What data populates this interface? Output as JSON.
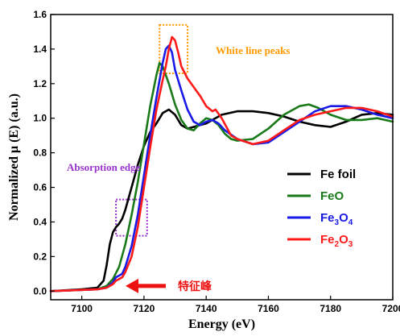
{
  "chart_data": {
    "type": "line",
    "xlabel": "Energy (eV)",
    "ylabel": "Normalized μ (E) (a.u.)",
    "xlim": [
      7090,
      7200
    ],
    "ylim": [
      -0.05,
      1.6
    ],
    "x_ticks": [
      "7100",
      "7120",
      "7140",
      "7160",
      "7180",
      "7200"
    ],
    "y_ticks": [
      "0.0",
      "0.2",
      "0.4",
      "0.6",
      "0.8",
      "1.0",
      "1.2",
      "1.4",
      "1.6"
    ],
    "grid": false,
    "legend_position": "lower-right",
    "series": [
      {
        "name": "Fe foil",
        "color": "#000000",
        "legend_parts": [
          [
            "Fe foil",
            "n"
          ]
        ],
        "points": [
          [
            7090,
            0.0
          ],
          [
            7100,
            0.01
          ],
          [
            7105,
            0.02
          ],
          [
            7107,
            0.06
          ],
          [
            7108,
            0.15
          ],
          [
            7109,
            0.27
          ],
          [
            7110,
            0.34
          ],
          [
            7111,
            0.37
          ],
          [
            7112,
            0.39
          ],
          [
            7113,
            0.42
          ],
          [
            7114,
            0.47
          ],
          [
            7116,
            0.6
          ],
          [
            7118,
            0.73
          ],
          [
            7120,
            0.84
          ],
          [
            7122,
            0.92
          ],
          [
            7124,
            0.97
          ],
          [
            7126,
            1.03
          ],
          [
            7128,
            1.05
          ],
          [
            7130,
            1.02
          ],
          [
            7132,
            0.96
          ],
          [
            7134,
            0.94
          ],
          [
            7136,
            0.95
          ],
          [
            7138,
            0.96
          ],
          [
            7140,
            0.97
          ],
          [
            7142,
            0.99
          ],
          [
            7145,
            1.02
          ],
          [
            7150,
            1.04
          ],
          [
            7155,
            1.04
          ],
          [
            7160,
            1.03
          ],
          [
            7165,
            1.01
          ],
          [
            7170,
            0.98
          ],
          [
            7175,
            0.96
          ],
          [
            7180,
            0.95
          ],
          [
            7185,
            0.98
          ],
          [
            7190,
            1.02
          ],
          [
            7195,
            1.03
          ],
          [
            7200,
            1.02
          ]
        ]
      },
      {
        "name": "FeO",
        "color": "#1a7a1a",
        "legend_parts": [
          [
            "FeO",
            "n"
          ]
        ],
        "points": [
          [
            7090,
            0.0
          ],
          [
            7105,
            0.01
          ],
          [
            7108,
            0.03
          ],
          [
            7110,
            0.07
          ],
          [
            7112,
            0.14
          ],
          [
            7114,
            0.27
          ],
          [
            7116,
            0.44
          ],
          [
            7118,
            0.63
          ],
          [
            7120,
            0.85
          ],
          [
            7122,
            1.07
          ],
          [
            7124,
            1.25
          ],
          [
            7125,
            1.32
          ],
          [
            7126,
            1.3
          ],
          [
            7128,
            1.2
          ],
          [
            7130,
            1.08
          ],
          [
            7132,
            0.99
          ],
          [
            7134,
            0.94
          ],
          [
            7136,
            0.93
          ],
          [
            7138,
            0.97
          ],
          [
            7140,
            1.0
          ],
          [
            7142,
            0.99
          ],
          [
            7144,
            0.96
          ],
          [
            7146,
            0.91
          ],
          [
            7148,
            0.88
          ],
          [
            7150,
            0.87
          ],
          [
            7155,
            0.88
          ],
          [
            7160,
            0.94
          ],
          [
            7165,
            1.02
          ],
          [
            7170,
            1.07
          ],
          [
            7173,
            1.08
          ],
          [
            7176,
            1.06
          ],
          [
            7180,
            1.02
          ],
          [
            7185,
            0.99
          ],
          [
            7190,
            0.99
          ],
          [
            7195,
            1.0
          ],
          [
            7200,
            0.98
          ]
        ]
      },
      {
        "name": "Fe3O4",
        "color": "#1a1ae6",
        "legend_parts": [
          [
            "Fe",
            "n"
          ],
          [
            "3",
            "s"
          ],
          [
            "O",
            "n"
          ],
          [
            "4",
            "s"
          ]
        ],
        "points": [
          [
            7090,
            0.0
          ],
          [
            7105,
            0.01
          ],
          [
            7108,
            0.02
          ],
          [
            7110,
            0.05
          ],
          [
            7111,
            0.08
          ],
          [
            7112,
            0.09
          ],
          [
            7113,
            0.1
          ],
          [
            7114,
            0.14
          ],
          [
            7116,
            0.26
          ],
          [
            7118,
            0.44
          ],
          [
            7120,
            0.67
          ],
          [
            7122,
            0.9
          ],
          [
            7124,
            1.12
          ],
          [
            7126,
            1.32
          ],
          [
            7127,
            1.4
          ],
          [
            7128,
            1.42
          ],
          [
            7129,
            1.38
          ],
          [
            7130,
            1.28
          ],
          [
            7132,
            1.16
          ],
          [
            7134,
            1.05
          ],
          [
            7136,
            0.98
          ],
          [
            7138,
            0.96
          ],
          [
            7140,
            0.98
          ],
          [
            7142,
            0.99
          ],
          [
            7144,
            0.97
          ],
          [
            7146,
            0.93
          ],
          [
            7150,
            0.88
          ],
          [
            7155,
            0.85
          ],
          [
            7160,
            0.86
          ],
          [
            7165,
            0.92
          ],
          [
            7170,
            0.98
          ],
          [
            7175,
            1.04
          ],
          [
            7180,
            1.07
          ],
          [
            7185,
            1.07
          ],
          [
            7190,
            1.05
          ],
          [
            7195,
            1.02
          ],
          [
            7200,
            1.0
          ]
        ]
      },
      {
        "name": "Fe2O3",
        "color": "#ff1a1a",
        "legend_parts": [
          [
            "Fe",
            "n"
          ],
          [
            "2",
            "s"
          ],
          [
            "O",
            "n"
          ],
          [
            "3",
            "s"
          ]
        ],
        "points": [
          [
            7090,
            0.0
          ],
          [
            7105,
            0.01
          ],
          [
            7108,
            0.02
          ],
          [
            7110,
            0.04
          ],
          [
            7111,
            0.06
          ],
          [
            7112,
            0.07
          ],
          [
            7113,
            0.08
          ],
          [
            7114,
            0.11
          ],
          [
            7116,
            0.2
          ],
          [
            7118,
            0.37
          ],
          [
            7120,
            0.6
          ],
          [
            7122,
            0.83
          ],
          [
            7124,
            1.05
          ],
          [
            7126,
            1.22
          ],
          [
            7127,
            1.3
          ],
          [
            7128,
            1.4
          ],
          [
            7129,
            1.47
          ],
          [
            7130,
            1.45
          ],
          [
            7131,
            1.38
          ],
          [
            7132,
            1.3
          ],
          [
            7134,
            1.23
          ],
          [
            7136,
            1.18
          ],
          [
            7138,
            1.13
          ],
          [
            7140,
            1.07
          ],
          [
            7142,
            1.04
          ],
          [
            7143,
            1.05
          ],
          [
            7145,
            1.0
          ],
          [
            7148,
            0.9
          ],
          [
            7150,
            0.88
          ],
          [
            7155,
            0.85
          ],
          [
            7160,
            0.87
          ],
          [
            7165,
            0.93
          ],
          [
            7170,
            0.99
          ],
          [
            7175,
            1.02
          ],
          [
            7180,
            1.04
          ],
          [
            7185,
            1.06
          ],
          [
            7190,
            1.06
          ],
          [
            7195,
            1.04
          ],
          [
            7200,
            1.01
          ]
        ]
      }
    ],
    "annotations": {
      "white_line_label": "White line peaks",
      "white_line_color": "#ff9900",
      "white_line_box": {
        "x": [
          7125,
          7134
        ],
        "y": [
          1.26,
          1.54
        ]
      },
      "absorption_label": "Absorption edge",
      "absorption_color": "#9933cc",
      "absorption_box": {
        "x": [
          7111,
          7121
        ],
        "y": [
          0.32,
          0.53
        ]
      },
      "feature_label": "特征峰",
      "feature_color": "#ee1111"
    }
  }
}
